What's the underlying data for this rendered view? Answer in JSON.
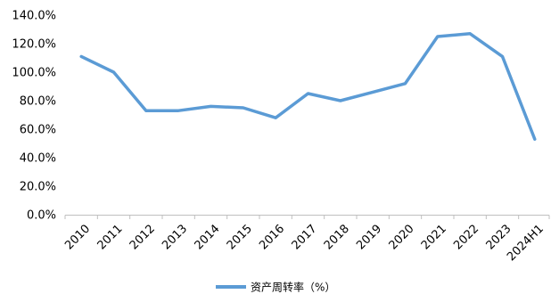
{
  "chart_data": {
    "type": "line",
    "x": [
      "2010",
      "2011",
      "2012",
      "2013",
      "2014",
      "2015",
      "2016",
      "2017",
      "2018",
      "2019",
      "2020",
      "2021",
      "2022",
      "2023",
      "2024H1"
    ],
    "series": [
      {
        "name": "资产周转率（%）",
        "values": [
          111,
          100,
          73,
          73,
          76,
          75,
          68,
          85,
          80,
          86,
          92,
          125,
          127,
          111,
          53
        ],
        "color": "#5B9BD5"
      }
    ],
    "yticks": [
      "0.0%",
      "20.0%",
      "40.0%",
      "60.0%",
      "80.0%",
      "100.0%",
      "120.0%",
      "140.0%"
    ],
    "ylim": [
      0,
      140
    ],
    "grid": false,
    "legend_position": "bottom-center"
  }
}
